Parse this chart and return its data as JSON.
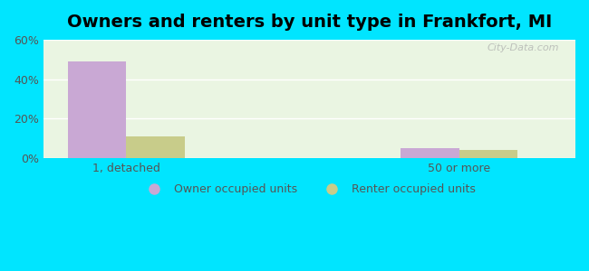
{
  "title": "Owners and renters by unit type in Frankfort, MI",
  "categories": [
    "1, detached",
    "50 or more"
  ],
  "owner_values": [
    49,
    5
  ],
  "renter_values": [
    11,
    4
  ],
  "owner_color": "#c9a8d4",
  "renter_color": "#c8cc8a",
  "background_outer": "#00e5ff",
  "background_inner": "#eaf5e2",
  "ylim": [
    0,
    60
  ],
  "yticks": [
    0,
    20,
    40,
    60
  ],
  "ytick_labels": [
    "0%",
    "20%",
    "40%",
    "60%"
  ],
  "bar_width": 0.35,
  "legend_labels": [
    "Owner occupied units",
    "Renter occupied units"
  ],
  "watermark": "City-Data.com",
  "title_fontsize": 14,
  "axis_fontsize": 9,
  "legend_fontsize": 9,
  "x_positions": [
    0.5,
    2.5
  ],
  "xlim": [
    0,
    3.2
  ]
}
